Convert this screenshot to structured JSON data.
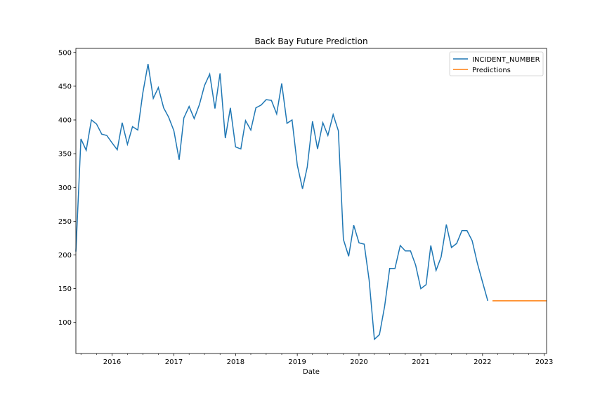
{
  "chart_data": {
    "type": "line",
    "title": "Back Bay Future Prediction",
    "xlabel": "Date",
    "ylabel": "",
    "xlim": [
      "2015-06-01",
      "2023-01-15"
    ],
    "ylim": [
      54,
      506
    ],
    "grid": false,
    "legend_position": "top-right",
    "x_ticks": [
      "2016",
      "2017",
      "2018",
      "2019",
      "2020",
      "2021",
      "2022",
      "2023"
    ],
    "y_ticks": [
      100,
      150,
      200,
      250,
      300,
      350,
      400,
      450,
      500
    ],
    "series": [
      {
        "name": "INCIDENT_NUMBER",
        "color": "#1f77b4",
        "x": [
          "2015-06",
          "2015-07",
          "2015-08",
          "2015-09",
          "2015-10",
          "2015-11",
          "2015-12",
          "2016-01",
          "2016-02",
          "2016-03",
          "2016-04",
          "2016-05",
          "2016-06",
          "2016-07",
          "2016-08",
          "2016-09",
          "2016-10",
          "2016-11",
          "2016-12",
          "2017-01",
          "2017-02",
          "2017-03",
          "2017-04",
          "2017-05",
          "2017-06",
          "2017-07",
          "2017-08",
          "2017-09",
          "2017-10",
          "2017-11",
          "2017-12",
          "2018-01",
          "2018-02",
          "2018-03",
          "2018-04",
          "2018-05",
          "2018-06",
          "2018-07",
          "2018-08",
          "2018-09",
          "2018-10",
          "2018-11",
          "2018-12",
          "2019-01",
          "2019-02",
          "2019-03",
          "2019-04",
          "2019-05",
          "2019-06",
          "2019-07",
          "2019-08",
          "2019-09",
          "2019-10",
          "2019-11",
          "2019-12",
          "2020-01",
          "2020-02",
          "2020-03",
          "2020-04",
          "2020-05",
          "2020-06",
          "2020-07",
          "2020-08",
          "2020-09",
          "2020-10",
          "2020-11",
          "2020-12",
          "2021-01",
          "2021-02",
          "2021-03",
          "2021-04",
          "2021-05",
          "2021-06",
          "2021-07",
          "2021-08",
          "2021-09",
          "2021-10",
          "2021-11",
          "2021-12",
          "2022-01",
          "2022-02"
        ],
        "values": [
          205,
          372,
          355,
          400,
          394,
          379,
          377,
          366,
          356,
          396,
          364,
          390,
          385,
          440,
          483,
          432,
          448,
          418,
          404,
          384,
          341,
          403,
          420,
          402,
          423,
          451,
          468,
          417,
          469,
          373,
          418,
          360,
          357,
          399,
          385,
          418,
          422,
          430,
          429,
          409,
          454,
          395,
          400,
          333,
          298,
          330,
          398,
          357,
          396,
          377,
          408,
          384,
          223,
          198,
          244,
          218,
          216,
          163,
          75,
          82,
          124,
          180,
          180,
          214,
          206,
          206,
          185,
          150,
          156,
          214,
          177,
          197,
          245,
          211,
          217,
          236,
          236,
          221,
          188,
          160,
          132
        ]
      },
      {
        "name": "Predictions",
        "color": "#ff7f0e",
        "x": [
          "2022-03",
          "2023-01-15"
        ],
        "values": [
          132,
          132
        ]
      }
    ]
  }
}
